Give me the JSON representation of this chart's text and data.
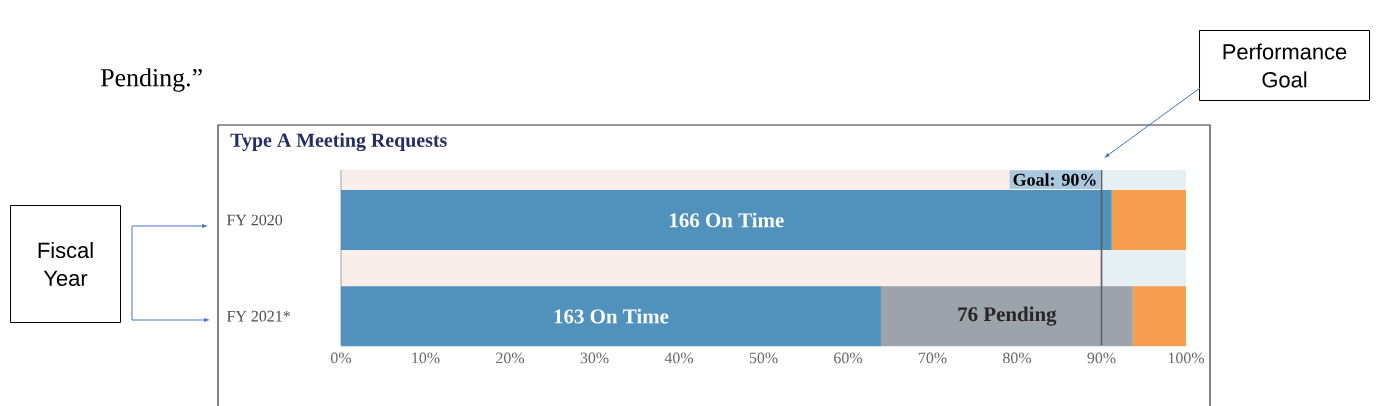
{
  "chart_data": {
    "type": "bar",
    "orientation": "horizontal",
    "stacked": true,
    "title": "Type A Meeting Requests",
    "categories": [
      "FY 2020",
      "FY 2021*"
    ],
    "series": [
      {
        "color": "#5092bc",
        "values": [
          91.2,
          63.9
        ]
      },
      {
        "color": "#9da3ab",
        "values": [
          null,
          29.8
        ]
      },
      {
        "color": "#f59f4f",
        "values": [
          8.8,
          6.3
        ]
      }
    ],
    "xlim": [
      0,
      100
    ],
    "xticks": [
      {
        "value": 0,
        "label": "0%"
      },
      {
        "value": 10,
        "label": "10%"
      },
      {
        "value": 20,
        "label": "20%"
      },
      {
        "value": 30,
        "label": "30%"
      },
      {
        "value": 40,
        "label": "40%"
      },
      {
        "value": 50,
        "label": "50%"
      },
      {
        "value": 60,
        "label": "60%"
      },
      {
        "value": 70,
        "label": "70%"
      },
      {
        "value": 80,
        "label": "80%"
      },
      {
        "value": 90,
        "label": "90%"
      },
      {
        "value": 100,
        "label": "100%"
      }
    ],
    "ref_lines": [
      {
        "axis": "x",
        "value": 90,
        "label": "Goal: 90%",
        "color": "#5a5f66"
      }
    ],
    "bands": [
      {
        "axis": "x",
        "from": 0,
        "to": 90,
        "color": "#f8ede8"
      },
      {
        "axis": "x",
        "from": 90,
        "to": 100,
        "color": "#e6eff4"
      }
    ],
    "annotations": [
      "Pending.”",
      "Performance Goal",
      "Fiscal Year",
      "166 On Time",
      "163 On Time",
      "76 Pending"
    ]
  }
}
